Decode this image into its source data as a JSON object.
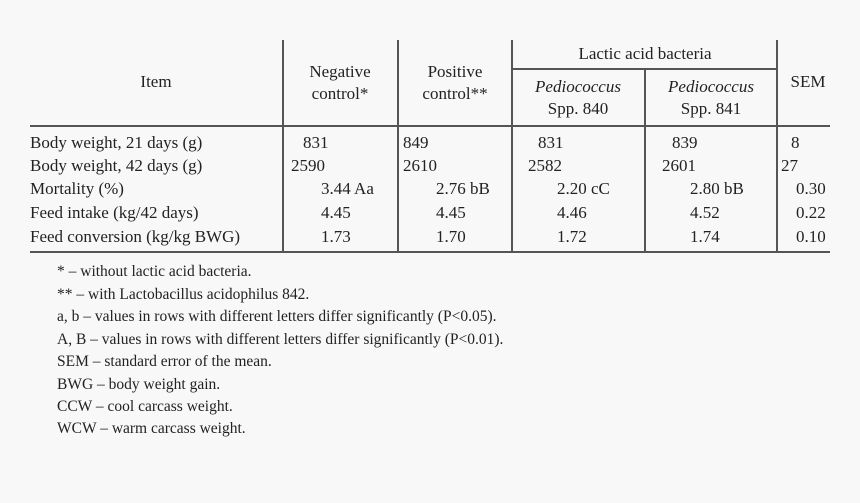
{
  "table": {
    "headers": {
      "item": "Item",
      "negative_line1": "Negative",
      "negative_line2": "control*",
      "positive_line1": "Positive",
      "positive_line2": "control**",
      "group": "Lactic acid bacteria",
      "pedio840_line1": "Pediococcus",
      "pedio840_line2": "Spp. 840",
      "pedio841_line1": "Pediococcus",
      "pedio841_line2": "Spp. 841",
      "sem": "SEM"
    },
    "rows": [
      {
        "item": "Body weight, 21 days (g)",
        "neg": "831",
        "pos": "849",
        "p840": "831",
        "p841": "839",
        "sem": "8"
      },
      {
        "item": "Body weight, 42 days (g)",
        "neg": "2590",
        "pos": "2610",
        "p840": "2582",
        "p841": "2601",
        "sem": "27"
      },
      {
        "item": "Mortality (%)",
        "neg": "3.44 Aa",
        "pos": "2.76 bB",
        "p840": "2.20 cC",
        "p841": "2.80 bB",
        "sem": "0.30"
      },
      {
        "item": "Feed intake (kg/42 days)",
        "neg": "4.45",
        "pos": "4.45",
        "p840": "4.46",
        "p841": "4.52",
        "sem": "0.22"
      },
      {
        "item": "Feed conversion (kg/kg BWG)",
        "neg": "1.73",
        "pos": "1.70",
        "p840": "1.72",
        "p841": "1.74",
        "sem": "0.10"
      }
    ]
  },
  "footnotes": [
    "* – without lactic acid bacteria.",
    "** – with Lactobacillus acidophilus 842.",
    "a, b – values in rows with different letters differ significantly (P<0.05).",
    "A, B – values in rows with different letters differ significantly (P<0.01).",
    "SEM – standard error of the mean.",
    "BWG – body weight gain.",
    "CCW – cool carcass weight.",
    "WCW – warm carcass weight."
  ]
}
